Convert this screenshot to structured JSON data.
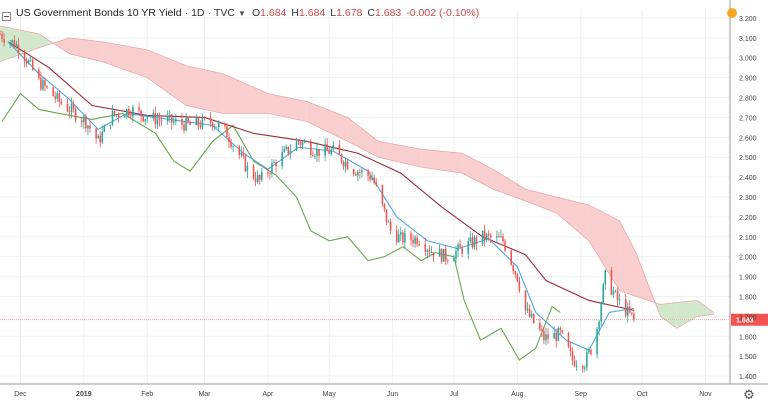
{
  "header": {
    "symbol_title": "US Government Bonds 10 YR Yield",
    "interval": "1D",
    "source": "TVC",
    "open_label": "O",
    "open": "1.684",
    "high_label": "H",
    "high": "1.684",
    "low_label": "L",
    "low": "1.678",
    "close_label": "C",
    "close": "1.683",
    "change": "-0.002 (-0.10%)"
  },
  "price_tag": "1.683",
  "icons": {
    "collapse": "minus-square-icon",
    "chevron": "chevron-down-icon",
    "settings": "gear-icon",
    "alert": "orange-dot-icon"
  },
  "colors": {
    "up": "#26a69a",
    "down": "#ef5350",
    "conversion_line": "#4fa8e0",
    "base_line": "#9b2a3a",
    "lagging_span": "#6aa84f",
    "cloud_bearish": "#f8c9c9",
    "cloud_bullish": "#cde5c6",
    "price_line": "#f28b8b"
  },
  "chart_data": {
    "type": "candlestick",
    "y_axis": {
      "range": [
        1.36,
        3.24
      ],
      "ticks": [
        "3.200",
        "3.100",
        "3.000",
        "2.900",
        "2.800",
        "2.700",
        "2.600",
        "2.500",
        "2.400",
        "2.300",
        "2.200",
        "2.100",
        "2.000",
        "1.900",
        "1.800",
        "1.700",
        "1.600",
        "1.500",
        "1.400"
      ]
    },
    "x_axis": {
      "range": [
        "2018-11-21",
        "2019-11-13"
      ],
      "ticks": [
        {
          "label": "Dec",
          "date": "2018-12-01"
        },
        {
          "label": "2019",
          "date": "2019-01-01"
        },
        {
          "label": "Feb",
          "date": "2019-02-01"
        },
        {
          "label": "Mar",
          "date": "2019-03-01"
        },
        {
          "label": "Apr",
          "date": "2019-04-01"
        },
        {
          "label": "May",
          "date": "2019-05-01"
        },
        {
          "label": "Jun",
          "date": "2019-06-01"
        },
        {
          "label": "Jul",
          "date": "2019-07-01"
        },
        {
          "label": "Aug",
          "date": "2019-08-01"
        },
        {
          "label": "Sep",
          "date": "2019-09-01"
        },
        {
          "label": "Oct",
          "date": "2019-10-01"
        },
        {
          "label": "Nov",
          "date": "2019-11-01"
        }
      ]
    },
    "price_line": 1.683,
    "close_path": [
      {
        "date": "2018-11-21",
        "value": 3.12
      },
      {
        "date": "2018-12-01",
        "value": 3.05
      },
      {
        "date": "2018-12-10",
        "value": 2.88
      },
      {
        "date": "2018-12-20",
        "value": 2.78
      },
      {
        "date": "2019-01-02",
        "value": 2.68
      },
      {
        "date": "2019-01-08",
        "value": 2.58
      },
      {
        "date": "2019-01-15",
        "value": 2.71
      },
      {
        "date": "2019-01-24",
        "value": 2.74
      },
      {
        "date": "2019-02-01",
        "value": 2.7
      },
      {
        "date": "2019-02-12",
        "value": 2.68
      },
      {
        "date": "2019-02-22",
        "value": 2.66
      },
      {
        "date": "2019-03-05",
        "value": 2.68
      },
      {
        "date": "2019-03-12",
        "value": 2.62
      },
      {
        "date": "2019-03-22",
        "value": 2.44
      },
      {
        "date": "2019-03-28",
        "value": 2.38
      },
      {
        "date": "2019-04-05",
        "value": 2.48
      },
      {
        "date": "2019-04-16",
        "value": 2.58
      },
      {
        "date": "2019-04-25",
        "value": 2.53
      },
      {
        "date": "2019-05-03",
        "value": 2.53
      },
      {
        "date": "2019-05-13",
        "value": 2.44
      },
      {
        "date": "2019-05-22",
        "value": 2.4
      },
      {
        "date": "2019-05-31",
        "value": 2.13
      },
      {
        "date": "2019-06-05",
        "value": 2.09
      },
      {
        "date": "2019-06-14",
        "value": 2.09
      },
      {
        "date": "2019-06-20",
        "value": 2.03
      },
      {
        "date": "2019-06-27",
        "value": 2.0
      },
      {
        "date": "2019-07-05",
        "value": 2.04
      },
      {
        "date": "2019-07-15",
        "value": 2.1
      },
      {
        "date": "2019-07-25",
        "value": 2.08
      },
      {
        "date": "2019-08-01",
        "value": 1.9
      },
      {
        "date": "2019-08-05",
        "value": 1.73
      },
      {
        "date": "2019-08-14",
        "value": 1.59
      },
      {
        "date": "2019-08-22",
        "value": 1.61
      },
      {
        "date": "2019-08-28",
        "value": 1.48
      },
      {
        "date": "2019-09-03",
        "value": 1.47
      },
      {
        "date": "2019-09-08",
        "value": 1.58
      },
      {
        "date": "2019-09-13",
        "value": 1.9
      },
      {
        "date": "2019-09-19",
        "value": 1.78
      },
      {
        "date": "2019-09-27",
        "value": 1.683
      }
    ],
    "conversion_line": [
      {
        "date": "2018-11-25",
        "value": 3.08
      },
      {
        "date": "2018-12-10",
        "value": 2.92
      },
      {
        "date": "2018-12-24",
        "value": 2.8
      },
      {
        "date": "2019-01-08",
        "value": 2.64
      },
      {
        "date": "2019-01-22",
        "value": 2.72
      },
      {
        "date": "2019-02-12",
        "value": 2.69
      },
      {
        "date": "2019-03-05",
        "value": 2.66
      },
      {
        "date": "2019-03-20",
        "value": 2.52
      },
      {
        "date": "2019-04-01",
        "value": 2.44
      },
      {
        "date": "2019-04-16",
        "value": 2.55
      },
      {
        "date": "2019-05-03",
        "value": 2.53
      },
      {
        "date": "2019-05-20",
        "value": 2.43
      },
      {
        "date": "2019-06-03",
        "value": 2.2
      },
      {
        "date": "2019-06-18",
        "value": 2.08
      },
      {
        "date": "2019-07-03",
        "value": 2.04
      },
      {
        "date": "2019-07-18",
        "value": 2.09
      },
      {
        "date": "2019-08-01",
        "value": 1.95
      },
      {
        "date": "2019-08-10",
        "value": 1.72
      },
      {
        "date": "2019-08-25",
        "value": 1.58
      },
      {
        "date": "2019-09-05",
        "value": 1.53
      },
      {
        "date": "2019-09-15",
        "value": 1.72
      },
      {
        "date": "2019-09-27",
        "value": 1.74
      }
    ],
    "base_line": [
      {
        "date": "2018-11-25",
        "value": 3.08
      },
      {
        "date": "2018-12-15",
        "value": 2.95
      },
      {
        "date": "2019-01-05",
        "value": 2.76
      },
      {
        "date": "2019-02-01",
        "value": 2.71
      },
      {
        "date": "2019-03-01",
        "value": 2.7
      },
      {
        "date": "2019-03-25",
        "value": 2.62
      },
      {
        "date": "2019-04-20",
        "value": 2.58
      },
      {
        "date": "2019-05-15",
        "value": 2.52
      },
      {
        "date": "2019-06-05",
        "value": 2.42
      },
      {
        "date": "2019-06-25",
        "value": 2.25
      },
      {
        "date": "2019-07-15",
        "value": 2.1
      },
      {
        "date": "2019-08-05",
        "value": 2.01
      },
      {
        "date": "2019-08-15",
        "value": 1.88
      },
      {
        "date": "2019-09-05",
        "value": 1.78
      },
      {
        "date": "2019-09-27",
        "value": 1.73
      }
    ],
    "lagging_span": [
      {
        "date": "2018-11-22",
        "value": 2.68
      },
      {
        "date": "2018-12-01",
        "value": 2.82
      },
      {
        "date": "2018-12-10",
        "value": 2.74
      },
      {
        "date": "2018-12-20",
        "value": 2.72
      },
      {
        "date": "2019-01-05",
        "value": 2.69
      },
      {
        "date": "2019-01-20",
        "value": 2.72
      },
      {
        "date": "2019-02-05",
        "value": 2.62
      },
      {
        "date": "2019-02-14",
        "value": 2.48
      },
      {
        "date": "2019-02-22",
        "value": 2.43
      },
      {
        "date": "2019-03-05",
        "value": 2.58
      },
      {
        "date": "2019-03-15",
        "value": 2.66
      },
      {
        "date": "2019-03-25",
        "value": 2.48
      },
      {
        "date": "2019-04-05",
        "value": 2.41
      },
      {
        "date": "2019-04-15",
        "value": 2.3
      },
      {
        "date": "2019-04-22",
        "value": 2.13
      },
      {
        "date": "2019-05-01",
        "value": 2.08
      },
      {
        "date": "2019-05-10",
        "value": 2.1
      },
      {
        "date": "2019-05-20",
        "value": 1.98
      },
      {
        "date": "2019-05-28",
        "value": 2.0
      },
      {
        "date": "2019-06-06",
        "value": 2.05
      },
      {
        "date": "2019-06-15",
        "value": 1.98
      },
      {
        "date": "2019-06-22",
        "value": 2.02
      },
      {
        "date": "2019-07-01",
        "value": 2.0
      },
      {
        "date": "2019-07-06",
        "value": 1.78
      },
      {
        "date": "2019-07-14",
        "value": 1.58
      },
      {
        "date": "2019-07-24",
        "value": 1.64
      },
      {
        "date": "2019-08-02",
        "value": 1.48
      },
      {
        "date": "2019-08-10",
        "value": 1.54
      },
      {
        "date": "2019-08-18",
        "value": 1.75
      },
      {
        "date": "2019-08-22",
        "value": 1.72
      }
    ],
    "cloud": [
      {
        "date": "2018-11-21",
        "a": 3.16,
        "b": 2.98
      },
      {
        "date": "2018-12-10",
        "a": 3.12,
        "b": 3.05
      },
      {
        "date": "2018-12-25",
        "a": 3.02,
        "b": 3.1
      },
      {
        "date": "2019-01-10",
        "a": 2.98,
        "b": 3.08
      },
      {
        "date": "2019-02-01",
        "a": 2.9,
        "b": 3.04
      },
      {
        "date": "2019-02-20",
        "a": 2.76,
        "b": 2.96
      },
      {
        "date": "2019-03-10",
        "a": 2.72,
        "b": 2.92
      },
      {
        "date": "2019-04-01",
        "a": 2.72,
        "b": 2.82
      },
      {
        "date": "2019-04-20",
        "a": 2.68,
        "b": 2.78
      },
      {
        "date": "2019-05-10",
        "a": 2.58,
        "b": 2.7
      },
      {
        "date": "2019-05-25",
        "a": 2.5,
        "b": 2.58
      },
      {
        "date": "2019-06-15",
        "a": 2.45,
        "b": 2.54
      },
      {
        "date": "2019-07-05",
        "a": 2.42,
        "b": 2.52
      },
      {
        "date": "2019-07-20",
        "a": 2.34,
        "b": 2.44
      },
      {
        "date": "2019-08-05",
        "a": 2.28,
        "b": 2.34
      },
      {
        "date": "2019-08-20",
        "a": 2.22,
        "b": 2.3
      },
      {
        "date": "2019-09-05",
        "a": 2.08,
        "b": 2.26
      },
      {
        "date": "2019-09-20",
        "a": 1.83,
        "b": 2.18
      },
      {
        "date": "2019-09-28",
        "a": 1.8,
        "b": 2.02
      },
      {
        "date": "2019-10-10",
        "a": 1.76,
        "b": 1.7
      },
      {
        "date": "2019-10-18",
        "a": 1.77,
        "b": 1.64
      },
      {
        "date": "2019-10-28",
        "a": 1.78,
        "b": 1.7
      },
      {
        "date": "2019-11-05",
        "a": 1.72,
        "b": 1.71
      }
    ]
  }
}
